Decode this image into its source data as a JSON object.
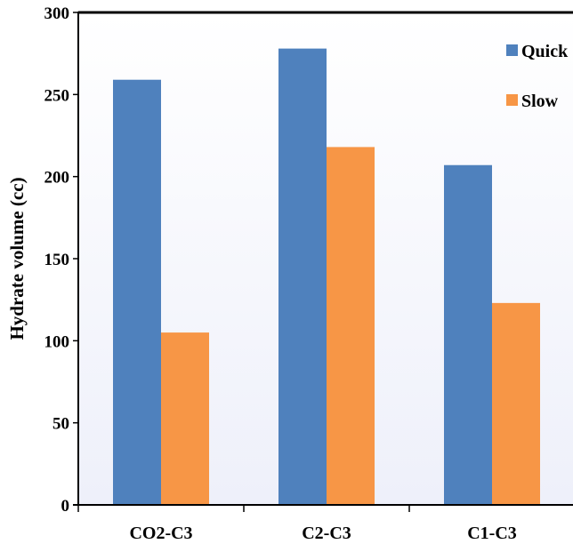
{
  "chart_data": {
    "type": "bar",
    "title": "",
    "xlabel": "",
    "ylabel": "Hydrate volume (cc)",
    "categories": [
      "CO2-C3",
      "C2-C3",
      "C1-C3"
    ],
    "series": [
      {
        "name": "Quick",
        "values": [
          259,
          278,
          207
        ]
      },
      {
        "name": "Slow",
        "values": [
          105,
          218,
          123
        ]
      }
    ],
    "ylim": [
      0,
      300
    ],
    "yticks": [
      0,
      50,
      100,
      150,
      200,
      250,
      300
    ],
    "grid": false,
    "legend_position": "top-right",
    "colors": {
      "Quick": "#4f81bd",
      "Slow": "#f79646",
      "plot_background_top": "#ffffff",
      "plot_background_bottom": "#eef0fa",
      "axis": "#000000"
    }
  }
}
